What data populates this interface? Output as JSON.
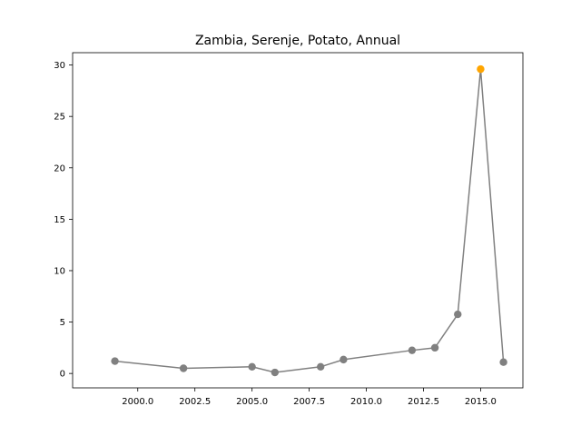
{
  "chart_data": {
    "type": "line",
    "title": "Zambia, Serenje, Potato, Annual",
    "xlabel": "",
    "ylabel": "",
    "xlim": [
      1997.15,
      2016.85
    ],
    "ylim": [
      -1.4,
      31.2
    ],
    "xticks": [
      2000.0,
      2002.5,
      2005.0,
      2007.5,
      2010.0,
      2012.5,
      2015.0
    ],
    "xtick_labels": [
      "2000.0",
      "2002.5",
      "2005.0",
      "2007.5",
      "2010.0",
      "2012.5",
      "2015.0"
    ],
    "yticks": [
      0,
      5,
      10,
      15,
      20,
      25,
      30
    ],
    "ytick_labels": [
      "0",
      "5",
      "10",
      "15",
      "20",
      "25",
      "30"
    ],
    "grid": false,
    "series": [
      {
        "color": "#808080",
        "x": [
          1999,
          2002,
          2005,
          2006,
          2008,
          2009,
          2012,
          2013,
          2014,
          2015,
          2016
        ],
        "y": [
          1.2,
          0.5,
          0.65,
          0.1,
          0.65,
          1.35,
          2.25,
          2.5,
          5.75,
          29.6,
          1.1
        ]
      }
    ],
    "highlight": {
      "x": 2015,
      "y": 29.6,
      "color": "#ffa500"
    },
    "point_color": "#808080"
  }
}
